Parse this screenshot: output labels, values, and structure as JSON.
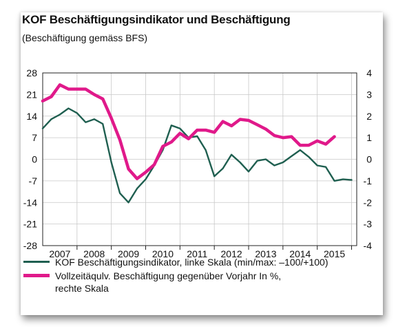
{
  "chart_data": {
    "type": "line",
    "title": "KOF Beschäftigungsindikator und Beschäftigung",
    "subtitle": "(Beschäftigung gemäss BFS)",
    "x_tick_labels": [
      "2007",
      "2008",
      "2009",
      "2010",
      "2011",
      "2012",
      "2013",
      "2014",
      "2015"
    ],
    "y_left_ticks": [
      "28",
      "21",
      "14",
      "7",
      "0",
      "-7",
      "-14",
      "-21",
      "-28"
    ],
    "y_right_ticks": [
      "4",
      "3",
      "2",
      "1",
      "0",
      "-1",
      "-2",
      "-3",
      "-4"
    ],
    "ylim_left": [
      -28,
      28
    ],
    "ylim_right": [
      -4,
      4
    ],
    "grid": true,
    "legend_position": "bottom",
    "series": [
      {
        "name": "KOF Beschäftigungsindikator, linke Skala (min/max: –100/+100)",
        "axis": "left",
        "color": "#1f5f50",
        "x": [
          2006.5,
          2006.75,
          2007.0,
          2007.25,
          2007.5,
          2007.75,
          2008.0,
          2008.25,
          2008.5,
          2008.75,
          2009.0,
          2009.25,
          2009.5,
          2009.75,
          2010.0,
          2010.25,
          2010.5,
          2010.75,
          2011.0,
          2011.25,
          2011.5,
          2011.75,
          2012.0,
          2012.25,
          2012.5,
          2012.75,
          2013.0,
          2013.25,
          2013.5,
          2013.75,
          2014.0,
          2014.25,
          2014.5,
          2014.75,
          2015.0,
          2015.25,
          2015.5
        ],
        "values": [
          10,
          13,
          14.5,
          16.5,
          15,
          12,
          13,
          11.5,
          -1,
          -11,
          -14,
          -9.5,
          -6.5,
          -2,
          3,
          11,
          10,
          7,
          7.5,
          3,
          -5.5,
          -3,
          1.5,
          -1,
          -4,
          -0.5,
          0,
          -2,
          -1,
          1,
          3,
          0.8,
          -2,
          -2.5,
          -7,
          -6.5,
          -6.7
        ]
      },
      {
        "name": "Vollzeitäqulv. Beschäftigung gegenüber Vorjahr In %, rechte Skala",
        "axis": "right",
        "color": "#e0198a",
        "x": [
          2006.5,
          2006.75,
          2007.0,
          2007.25,
          2007.5,
          2007.75,
          2008.0,
          2008.25,
          2008.5,
          2008.75,
          2009.0,
          2009.25,
          2009.5,
          2009.75,
          2010.0,
          2010.25,
          2010.5,
          2010.75,
          2011.0,
          2011.25,
          2011.5,
          2011.75,
          2012.0,
          2012.25,
          2012.5,
          2012.75,
          2013.0,
          2013.25,
          2013.5,
          2013.75,
          2014.0,
          2014.25,
          2014.5,
          2014.75,
          2015.0,
          2015.25
        ],
        "values": [
          2.7,
          2.9,
          3.45,
          3.25,
          3.25,
          3.25,
          3.0,
          2.8,
          1.9,
          0.9,
          -0.45,
          -0.9,
          -0.6,
          -0.25,
          0.6,
          0.8,
          1.2,
          0.95,
          1.35,
          1.35,
          1.25,
          1.75,
          1.55,
          1.85,
          1.8,
          1.6,
          1.4,
          1.1,
          1.0,
          1.05,
          0.65,
          0.65,
          0.85,
          0.7,
          1.05,
          null
        ]
      }
    ]
  },
  "legend": {
    "item1_label": "KOF Beschäftigungsindikator, linke Skala (min/max: –100/+100)",
    "item2_label_line1": "Vollzeitäqulv. Beschäftigung gegenüber Vorjahr In %,",
    "item2_label_line2": "rechte Skala"
  }
}
